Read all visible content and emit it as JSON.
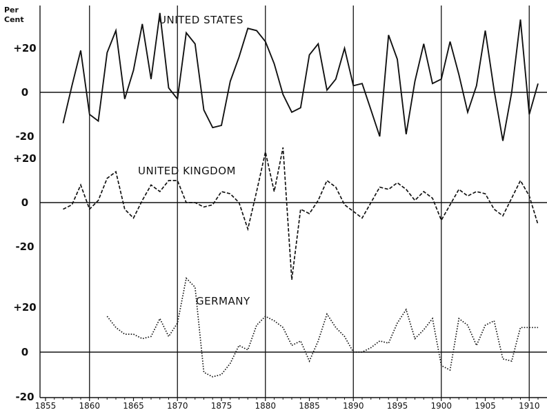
{
  "chart_data": {
    "type": "line",
    "unit_label_line1": "Per",
    "unit_label_line2": "Cent",
    "x_axis": {
      "range": [
        1855,
        1912
      ],
      "ticks": [
        "1855",
        "1860",
        "1865",
        "1870",
        "1875",
        "1880",
        "1885",
        "1890",
        "1895",
        "1900",
        "1905",
        "1910"
      ],
      "gridlines_at": [
        1860,
        1870,
        1880,
        1890,
        1900,
        1910
      ]
    },
    "panels": [
      {
        "title": "UNITED STATES",
        "line_style": "solid",
        "ylim": [
          -20,
          30
        ],
        "y_labels": [
          "+20",
          "0",
          "-20"
        ],
        "x": [
          1857,
          1858,
          1859,
          1860,
          1861,
          1862,
          1863,
          1864,
          1865,
          1866,
          1867,
          1868,
          1869,
          1870,
          1871,
          1872,
          1873,
          1874,
          1875,
          1876,
          1877,
          1878,
          1879,
          1880,
          1881,
          1882,
          1883,
          1884,
          1885,
          1886,
          1887,
          1888,
          1889,
          1890,
          1891,
          1892,
          1893,
          1894,
          1895,
          1896,
          1897,
          1898,
          1899,
          1900,
          1901,
          1902,
          1903,
          1904,
          1905,
          1906,
          1907,
          1908,
          1909,
          1910,
          1911
        ],
        "y": [
          -14,
          3,
          19,
          -10,
          -13,
          18,
          28,
          -3,
          10,
          31,
          6,
          36,
          2,
          -3,
          27,
          22,
          -8,
          -16,
          -15,
          5,
          16,
          29,
          28,
          23,
          13,
          -1,
          -9,
          -7,
          17,
          22,
          1,
          6,
          20,
          3,
          4,
          -8,
          -20,
          26,
          15,
          -19,
          5,
          22,
          4,
          6,
          23,
          8,
          -9,
          3,
          28,
          1,
          -22,
          0,
          33,
          -10,
          4
        ]
      },
      {
        "title": "UNITED KINGDOM",
        "line_style": "dashed",
        "ylim": [
          -35,
          25
        ],
        "y_labels": [
          "+20",
          "0",
          "-20"
        ],
        "x": [
          1857,
          1858,
          1859,
          1860,
          1861,
          1862,
          1863,
          1864,
          1865,
          1866,
          1867,
          1868,
          1869,
          1870,
          1871,
          1872,
          1873,
          1874,
          1875,
          1876,
          1877,
          1878,
          1879,
          1880,
          1881,
          1882,
          1883,
          1884,
          1885,
          1886,
          1887,
          1888,
          1889,
          1890,
          1891,
          1892,
          1893,
          1894,
          1895,
          1896,
          1897,
          1898,
          1899,
          1900,
          1901,
          1902,
          1903,
          1904,
          1905,
          1906,
          1907,
          1908,
          1909,
          1910,
          1911
        ],
        "y": [
          -3,
          -1,
          8,
          -3,
          1,
          11,
          14,
          -3,
          -7,
          1,
          8,
          5,
          10,
          10,
          0,
          0,
          -2,
          -1,
          5,
          4,
          0,
          -12,
          5,
          23,
          5,
          25,
          -35,
          -3,
          -5,
          1,
          10,
          7,
          -1,
          -4,
          -7,
          0,
          7,
          6,
          9,
          6,
          1,
          5,
          2,
          -8,
          -1,
          6,
          3,
          5,
          4,
          -3,
          -6,
          2,
          10,
          3,
          -10
        ]
      },
      {
        "title": "GERMANY",
        "line_style": "dotted",
        "ylim": [
          -20,
          30
        ],
        "y_labels": [
          "+20",
          "0",
          "-20"
        ],
        "x": [
          1862,
          1863,
          1864,
          1865,
          1866,
          1867,
          1868,
          1869,
          1870,
          1871,
          1872,
          1873,
          1874,
          1875,
          1876,
          1877,
          1878,
          1879,
          1880,
          1881,
          1882,
          1883,
          1884,
          1885,
          1886,
          1887,
          1888,
          1889,
          1890,
          1891,
          1892,
          1893,
          1894,
          1895,
          1896,
          1897,
          1898,
          1899,
          1900,
          1901,
          1902,
          1903,
          1904,
          1905,
          1906,
          1907,
          1908,
          1909,
          1910,
          1911
        ],
        "y": [
          16,
          11,
          8,
          8,
          6,
          7,
          15,
          7,
          13,
          33,
          29,
          -9,
          -11,
          -10,
          -5,
          3,
          1,
          12,
          16,
          14,
          11,
          3,
          5,
          -4,
          5,
          17,
          11,
          7,
          0,
          0,
          2,
          5,
          4,
          13,
          19,
          6,
          10,
          15,
          -6,
          -8,
          15,
          12,
          3,
          12,
          14,
          -3,
          -4,
          11,
          11,
          11
        ]
      }
    ]
  }
}
